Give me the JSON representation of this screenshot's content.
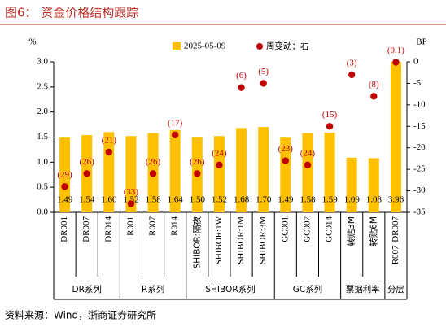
{
  "chart_data": {
    "type": "bar",
    "title": "图6：  资金价格结构跟踪",
    "y_label": "%",
    "y2_label": "BP",
    "source": "资料来源：Wind，浙商证券研究所",
    "categories": [
      "DR001",
      "DR007",
      "DR014",
      "R001",
      "R007",
      "R014",
      "SHIBOR:隔夜",
      "SHIBOR:1W",
      "SHIBOR:1M",
      "SHIBOR:3M",
      "GC001",
      "GC007",
      "GC014",
      "转贴3M",
      "转贴6M",
      "R007-DR007"
    ],
    "groups": [
      "DR系列",
      "R系列",
      "SHIBOR系列",
      "GC系列",
      "票据利率",
      "分层"
    ],
    "series": [
      {
        "name": "2025-05-09",
        "color": "#ffc000",
        "type": "bar",
        "values": [
          1.49,
          1.54,
          1.6,
          1.52,
          1.58,
          1.64,
          1.5,
          1.52,
          1.68,
          1.7,
          1.49,
          1.58,
          1.59,
          1.09,
          1.08,
          3.96
        ],
        "value_labels": [
          "1.49",
          "1.54",
          "1.60",
          "1.52",
          "1.58",
          "1.64",
          "1.50",
          "1.52",
          "1.68",
          "1.70",
          "1.49",
          "1.58",
          "1.59",
          "1.09",
          "1.08",
          "3.96"
        ]
      },
      {
        "name": "周变动：右",
        "color": "#c00000",
        "type": "scatter",
        "axis": "y2",
        "values": [
          -29,
          -26,
          -21,
          -33,
          -26,
          -17,
          -26,
          -24,
          -6,
          -5,
          -23,
          -24,
          -15,
          -3,
          -8,
          -0.1
        ],
        "value_labels": [
          "(29)",
          "(26)",
          "(21)",
          "(33)",
          "(26)",
          "(17)",
          "(26)",
          "(24)",
          "(6)",
          "(5)",
          "(23)",
          "(24)",
          "(15)",
          "(3)",
          "(8)",
          "(0.1)"
        ]
      }
    ],
    "ylim": [
      0,
      3
    ],
    "yticks": [
      {
        "value": 0,
        "label": "0.0"
      },
      0.5,
      {
        "value": 1,
        "label": "1.0"
      },
      1.5,
      {
        "value": 2,
        "label": "2.0"
      },
      2.5,
      {
        "value": 3,
        "label": "3.0"
      }
    ],
    "y2lim": [
      -35,
      0
    ],
    "y2ticks": [
      0,
      -5,
      -10,
      -15,
      -20,
      -25,
      -30,
      -35
    ],
    "legend": "top"
  }
}
